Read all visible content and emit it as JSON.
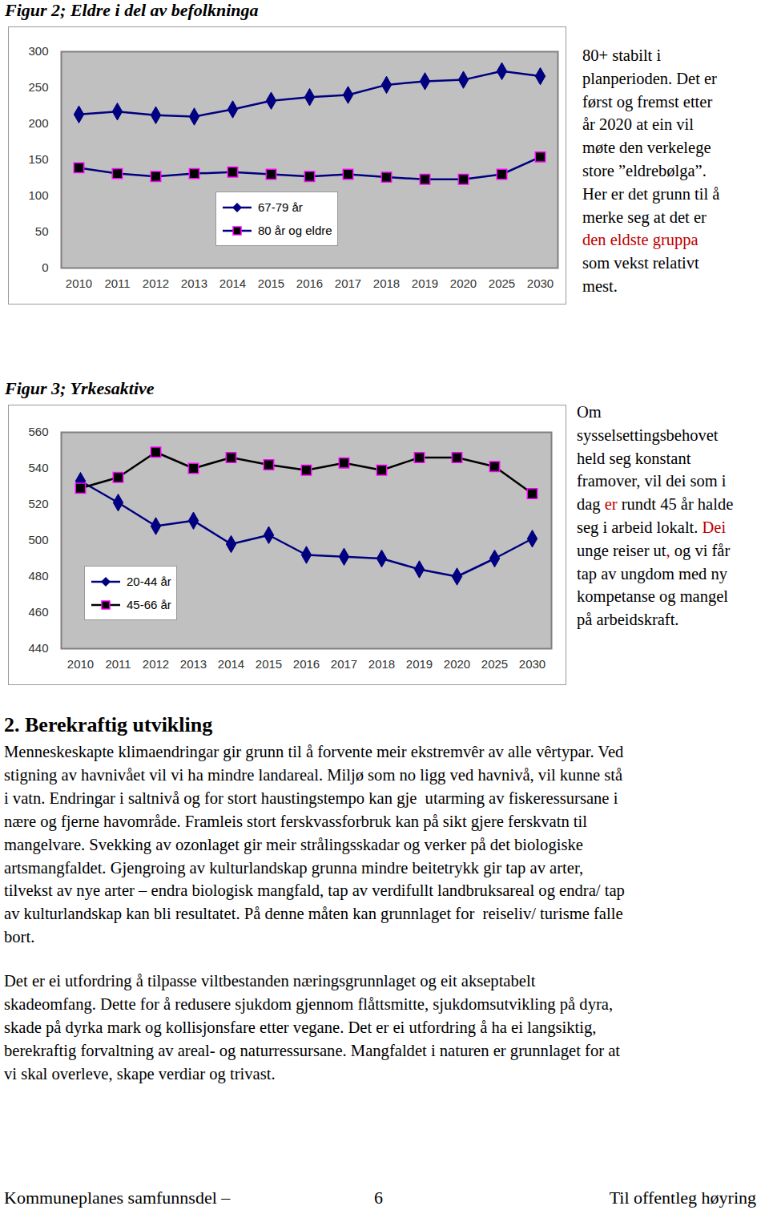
{
  "chart_data": [
    {
      "type": "line",
      "title": "Figur 2; Eldre i del av befolkninga",
      "categories": [
        "2010",
        "2011",
        "2012",
        "2013",
        "2014",
        "2015",
        "2016",
        "2017",
        "2018",
        "2019",
        "2020",
        "2025",
        "2030"
      ],
      "series": [
        {
          "name": "67-79 år",
          "color": "#000080",
          "marker": "diamond",
          "values": [
            213,
            217,
            212,
            210,
            220,
            232,
            237,
            240,
            254,
            259,
            261,
            273,
            266
          ]
        },
        {
          "name": "80 år og eldre",
          "color": "#000080",
          "marker": "square",
          "values": [
            139,
            131,
            127,
            131,
            133,
            130,
            127,
            130,
            126,
            123,
            123,
            130,
            154
          ]
        }
      ],
      "ylim": [
        0,
        300
      ],
      "yticks": [
        0,
        50,
        100,
        150,
        200,
        250,
        300
      ],
      "legend": "bottom"
    },
    {
      "type": "line",
      "title": "Figur 3; Yrkesaktive",
      "categories": [
        "2010",
        "2011",
        "2012",
        "2013",
        "2014",
        "2015",
        "2016",
        "2017",
        "2018",
        "2019",
        "2020",
        "2025",
        "2030"
      ],
      "series": [
        {
          "name": "20-44 år",
          "color": "#000080",
          "marker": "diamond",
          "values": [
            533,
            521,
            508,
            511,
            498,
            503,
            492,
            491,
            490,
            484,
            480,
            490,
            501
          ]
        },
        {
          "name": "45-66 år",
          "color": "#000000",
          "marker": "square",
          "values": [
            529,
            535,
            549,
            540,
            546,
            542,
            539,
            543,
            539,
            546,
            546,
            541,
            526
          ]
        }
      ],
      "ylim": [
        440,
        560
      ],
      "yticks": [
        440,
        460,
        480,
        500,
        520,
        540,
        560
      ],
      "legend": "bottom-left"
    }
  ],
  "side_notes": [
    [
      [
        {
          "text": "80+ stabilt i"
        }
      ],
      [
        {
          "text": "planperioden. Det er"
        }
      ],
      [
        {
          "text": "først og fremst etter"
        }
      ],
      [
        {
          "text": "år 2020 at ein vil"
        }
      ],
      [
        {
          "text": "møte den verkelege"
        }
      ],
      [
        {
          "text": "store ”eldrebølga”."
        }
      ],
      [
        {
          "text": "Her er det grunn til å"
        }
      ],
      [
        {
          "text": "merke seg at det er"
        }
      ],
      [
        {
          "text": "den eldste gruppa",
          "color": "#c00000"
        }
      ],
      [
        {
          "text": "som vekst relativt"
        }
      ],
      [
        {
          "text": "mest."
        }
      ]
    ],
    [
      [
        {
          "text": "Om"
        }
      ],
      [
        {
          "text": "sysselsettingsbehovet"
        }
      ],
      [
        {
          "text": "held seg konstant"
        }
      ],
      [
        {
          "text": "framover, vil dei som i"
        }
      ],
      [
        {
          "text": "dag "
        },
        {
          "text": "er",
          "color": "#c00000"
        },
        {
          "text": " rundt 45 år halde"
        }
      ],
      [
        {
          "text": "seg i arbeid lokalt. "
        },
        {
          "text": "Dei",
          "color": "#c00000"
        }
      ],
      [
        {
          "text": "unge reiser ut"
        },
        {
          "text": ",",
          "color": "#c00000"
        },
        {
          "text": " og vi får"
        }
      ],
      [
        {
          "text": "tap av ungdom med ny"
        }
      ],
      [
        {
          "text": "kompetanse og mangel"
        }
      ],
      [
        {
          "text": "på arbeidskraft."
        }
      ]
    ]
  ],
  "section": {
    "heading": "2. Berekraftig utvikling",
    "paragraphs": [
      [
        "Menneskeskapte klimaendringar gir grunn til å forvente meir ekstremvêr av alle vêrtypar. Ved",
        "stigning av havnivået vil vi ha mindre landareal. Miljø som no ligg ved havnivå, vil kunne stå",
        "i vatn. Endringar i saltnivå og for stort haustingstempo kan gje  utarming av fiskeressursane i",
        "nære og fjerne havområde. Framleis stort ferskvassforbruk kan på sikt gjere ferskvatn til",
        "mangelvare. Svekking av ozonlaget gir meir strålingsskadar og verker på det biologiske",
        "artsmangfaldet. Gjengroing av kulturlandskap grunna mindre beitetrykk gir tap av arter,",
        "tilvekst av nye arter – endra biologisk mangfald, tap av verdifullt landbruksareal og endra/ tap",
        "av kulturlandskap kan bli resultatet. På denne måten kan grunnlaget for  reiseliv/ turisme falle",
        "bort."
      ],
      [
        "Det er ei utfordring å tilpasse viltbestanden næringsgrunnlaget og eit akseptabelt",
        "skadeomfang. Dette for å redusere sjukdom gjennom flåttsmitte, sjukdomsutvikling på dyra,",
        "skade på dyrka mark og kollisjonsfare etter vegane. Det er ei utfordring å ha ei langsiktig,",
        "berekraftig forvaltning av areal- og naturressursane. Mangfaldet i naturen er grunnlaget for at",
        "vi skal overleve, skape verdiar og trivast."
      ]
    ]
  },
  "footer": {
    "left": "Kommuneplanes samfunnsdel –",
    "page": 6,
    "right": "Til offentleg høyring"
  }
}
